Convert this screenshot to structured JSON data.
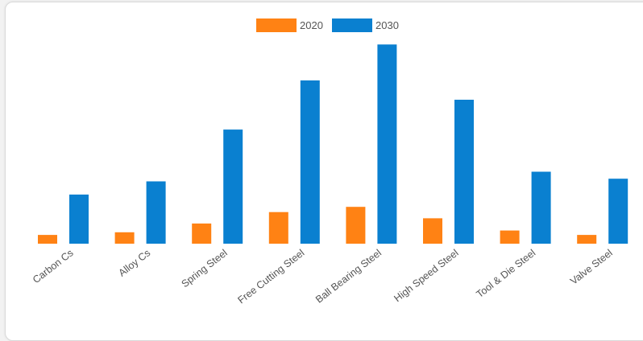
{
  "chart_data": {
    "type": "bar",
    "title": "",
    "xlabel": "",
    "ylabel": "",
    "categories": [
      "Carbon Cs",
      "Alloy Cs",
      "Spring Steel",
      "Free Cutting Steel",
      "Ball Bearing Steel",
      "High Speed Steel",
      "Tool & Die Steel",
      "Valve Steel"
    ],
    "series": [
      {
        "name": "2020",
        "color": "#ff8214",
        "values": [
          1.0,
          1.3,
          2.3,
          3.6,
          4.2,
          2.9,
          1.5,
          1.0
        ]
      },
      {
        "name": "2030",
        "color": "#0a80d0",
        "values": [
          5.6,
          7.1,
          13.0,
          18.6,
          22.7,
          16.4,
          8.2,
          7.4
        ]
      }
    ],
    "ylim": [
      0,
      23.0
    ],
    "grid": false,
    "legend": "top-center"
  }
}
